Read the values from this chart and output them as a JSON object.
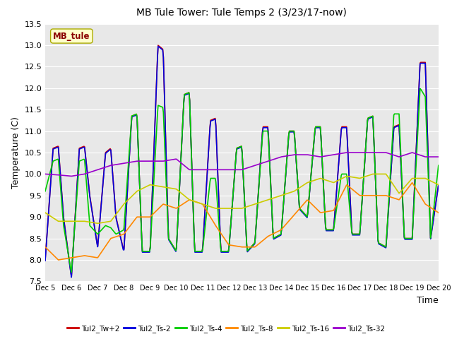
{
  "title": "MB Tule Tower: Tule Temps 2 (3/23/17-now)",
  "xlabel": "Time",
  "ylabel": "Temperature (C)",
  "ylim": [
    7.5,
    13.5
  ],
  "yticks": [
    7.5,
    8.0,
    8.5,
    9.0,
    9.5,
    10.0,
    10.5,
    11.0,
    11.5,
    12.0,
    12.5,
    13.0,
    13.5
  ],
  "xtick_labels": [
    "Dec 5",
    "Dec 6",
    "Dec 7",
    "Dec 8",
    "Dec 9",
    "Dec 10",
    "Dec 11",
    "Dec 12",
    "Dec 13",
    "Dec 14",
    "Dec 15",
    "Dec 16",
    "Dec 17",
    "Dec 18",
    "Dec 19",
    "Dec 20"
  ],
  "watermark": "MB_tule",
  "bg_color": "#e8e8e8",
  "plot_bg": "#e8e8e8",
  "series": {
    "Tul2_Tw+2": {
      "color": "#cc0000",
      "lw": 1.2
    },
    "Tul2_Ts-2": {
      "color": "#0000dd",
      "lw": 1.2
    },
    "Tul2_Ts-4": {
      "color": "#00cc00",
      "lw": 1.2
    },
    "Tul2_Ts-8": {
      "color": "#ff8800",
      "lw": 1.2
    },
    "Tul2_Ts-16": {
      "color": "#cccc00",
      "lw": 1.2
    },
    "Tul2_Ts-32": {
      "color": "#9900cc",
      "lw": 1.2
    }
  },
  "legend_order": [
    "Tul2_Tw+2",
    "Tul2_Ts-2",
    "Tul2_Ts-4",
    "Tul2_Ts-8",
    "Tul2_Ts-16",
    "Tul2_Ts-32"
  ]
}
